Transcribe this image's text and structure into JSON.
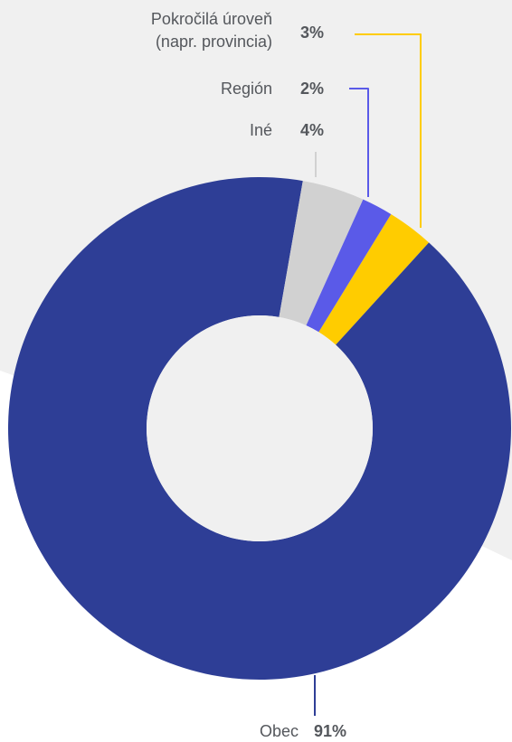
{
  "chart_data": {
    "type": "pie",
    "style": "donut",
    "title": "",
    "slices": [
      {
        "label": "Obec",
        "value": 91,
        "value_label": "91%",
        "color": "#2e3e96"
      },
      {
        "label": "Iné",
        "value": 4,
        "value_label": "4%",
        "color": "#d1d1d1"
      },
      {
        "label": "Región",
        "value": 2,
        "value_label": "2%",
        "color": "#5a5ae8"
      },
      {
        "label_lines": [
          "Pokročilá úroveň",
          "(napr. provincia)"
        ],
        "value": 3,
        "value_label": "3%",
        "color": "#ffcc00"
      }
    ],
    "legend": "none",
    "background_color": "#f0f0f0"
  }
}
